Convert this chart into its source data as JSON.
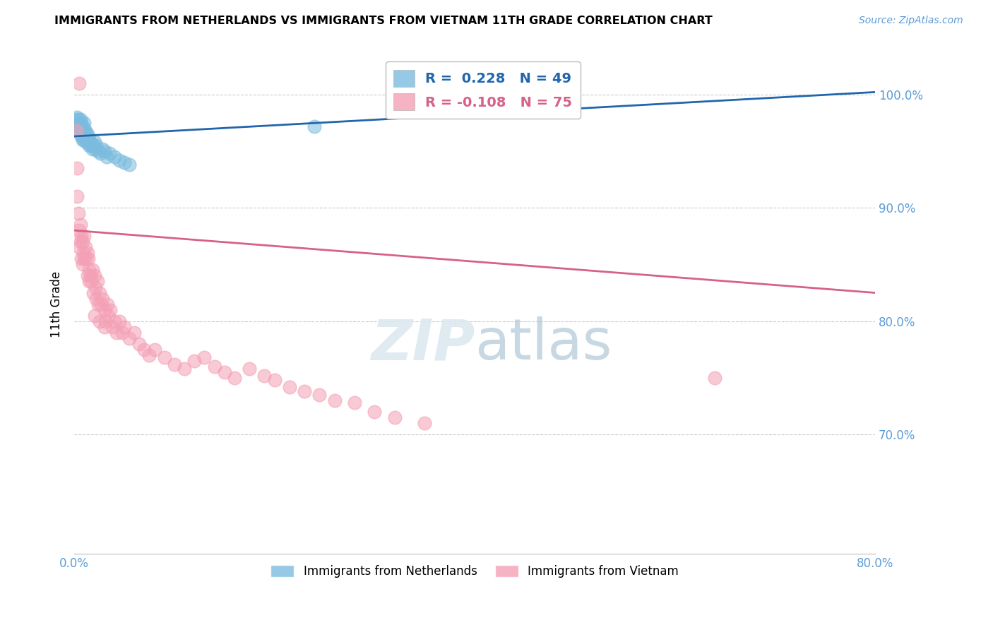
{
  "title": "IMMIGRANTS FROM NETHERLANDS VS IMMIGRANTS FROM VIETNAM 11TH GRADE CORRELATION CHART",
  "source": "Source: ZipAtlas.com",
  "ylabel": "11th Grade",
  "legend_netherlands": "Immigrants from Netherlands",
  "legend_vietnam": "Immigrants from Vietnam",
  "R_netherlands": 0.228,
  "N_netherlands": 49,
  "R_vietnam": -0.108,
  "N_vietnam": 75,
  "x_min": 0.0,
  "x_max": 0.8,
  "y_min": 0.595,
  "y_max": 1.035,
  "yticks": [
    0.7,
    0.8,
    0.9,
    1.0
  ],
  "ytick_labels": [
    "70.0%",
    "80.0%",
    "90.0%",
    "100.0%"
  ],
  "xticks": [
    0.0,
    0.1,
    0.2,
    0.3,
    0.4,
    0.5,
    0.6,
    0.7,
    0.8
  ],
  "xtick_labels": [
    "0.0%",
    "",
    "",
    "",
    "",
    "",
    "",
    "",
    "80.0%"
  ],
  "color_netherlands": "#7bbcde",
  "color_vietnam": "#f4a0b5",
  "line_color_netherlands": "#2166ac",
  "line_color_vietnam": "#d6618a",
  "axis_label_color": "#5b9bd5",
  "watermark_color": "#dce8f0",
  "netherlands_x": [
    0.002,
    0.003,
    0.003,
    0.004,
    0.004,
    0.005,
    0.005,
    0.006,
    0.006,
    0.006,
    0.007,
    0.007,
    0.007,
    0.008,
    0.008,
    0.008,
    0.009,
    0.009,
    0.01,
    0.01,
    0.01,
    0.011,
    0.011,
    0.012,
    0.012,
    0.013,
    0.013,
    0.014,
    0.015,
    0.015,
    0.016,
    0.017,
    0.018,
    0.019,
    0.02,
    0.021,
    0.022,
    0.024,
    0.026,
    0.028,
    0.03,
    0.032,
    0.035,
    0.04,
    0.045,
    0.05,
    0.055,
    0.24,
    0.34
  ],
  "netherlands_y": [
    0.978,
    0.98,
    0.975,
    0.978,
    0.972,
    0.975,
    0.968,
    0.978,
    0.972,
    0.965,
    0.975,
    0.97,
    0.963,
    0.972,
    0.968,
    0.96,
    0.97,
    0.963,
    0.975,
    0.968,
    0.96,
    0.968,
    0.962,
    0.965,
    0.958,
    0.965,
    0.958,
    0.962,
    0.96,
    0.955,
    0.958,
    0.955,
    0.952,
    0.955,
    0.958,
    0.952,
    0.955,
    0.95,
    0.948,
    0.952,
    0.95,
    0.945,
    0.948,
    0.945,
    0.942,
    0.94,
    0.938,
    0.972,
    1.002
  ],
  "vietnam_x": [
    0.002,
    0.003,
    0.003,
    0.004,
    0.005,
    0.005,
    0.006,
    0.006,
    0.007,
    0.007,
    0.008,
    0.008,
    0.009,
    0.01,
    0.01,
    0.011,
    0.012,
    0.013,
    0.013,
    0.014,
    0.015,
    0.015,
    0.016,
    0.017,
    0.018,
    0.019,
    0.02,
    0.021,
    0.022,
    0.023,
    0.024,
    0.025,
    0.027,
    0.028,
    0.03,
    0.031,
    0.033,
    0.034,
    0.036,
    0.038,
    0.04,
    0.042,
    0.045,
    0.048,
    0.05,
    0.055,
    0.06,
    0.065,
    0.07,
    0.075,
    0.08,
    0.09,
    0.1,
    0.11,
    0.12,
    0.13,
    0.14,
    0.15,
    0.16,
    0.175,
    0.19,
    0.2,
    0.215,
    0.23,
    0.245,
    0.26,
    0.28,
    0.3,
    0.32,
    0.35,
    0.02,
    0.025,
    0.03,
    0.64,
    0.005
  ],
  "vietnam_y": [
    0.968,
    0.935,
    0.91,
    0.895,
    0.88,
    0.865,
    0.885,
    0.87,
    0.875,
    0.855,
    0.87,
    0.85,
    0.86,
    0.875,
    0.855,
    0.865,
    0.855,
    0.86,
    0.84,
    0.855,
    0.845,
    0.835,
    0.84,
    0.835,
    0.845,
    0.825,
    0.84,
    0.83,
    0.82,
    0.835,
    0.815,
    0.825,
    0.815,
    0.82,
    0.81,
    0.8,
    0.815,
    0.805,
    0.81,
    0.795,
    0.8,
    0.79,
    0.8,
    0.79,
    0.795,
    0.785,
    0.79,
    0.78,
    0.775,
    0.77,
    0.775,
    0.768,
    0.762,
    0.758,
    0.765,
    0.768,
    0.76,
    0.755,
    0.75,
    0.758,
    0.752,
    0.748,
    0.742,
    0.738,
    0.735,
    0.73,
    0.728,
    0.72,
    0.715,
    0.71,
    0.805,
    0.8,
    0.795,
    0.75,
    1.01
  ]
}
